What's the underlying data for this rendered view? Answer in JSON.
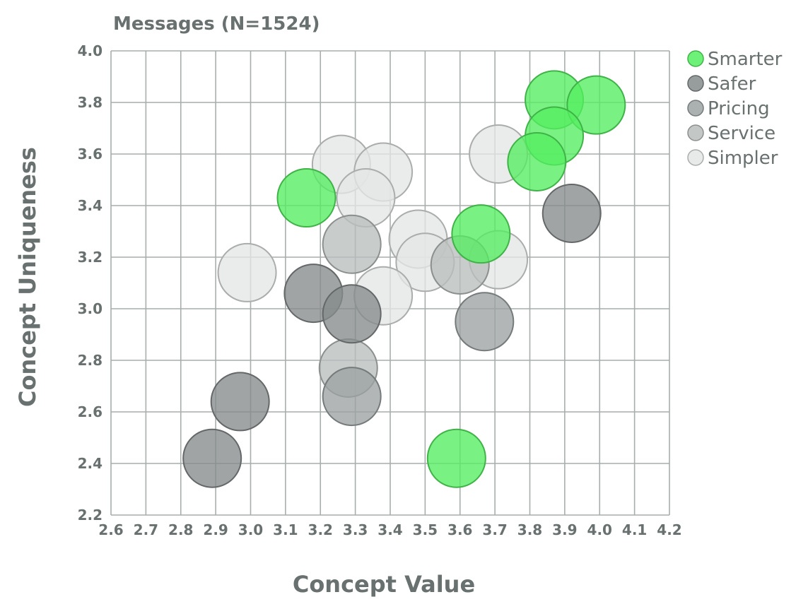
{
  "chart_data": {
    "type": "scatter",
    "title": "Messages (N=1524)",
    "xlabel": "Concept Value",
    "ylabel": "Concept Uniqueness",
    "xlim": [
      2.6,
      4.2
    ],
    "ylim": [
      2.2,
      4.0
    ],
    "x_ticks": [
      "2.6",
      "2.7",
      "2.8",
      "2.9",
      "3.0",
      "3.1",
      "3.2",
      "3.3",
      "3.4",
      "3.5",
      "3.6",
      "3.7",
      "3.8",
      "3.9",
      "4.0",
      "4.1",
      "4.2"
    ],
    "y_ticks": [
      "2.2",
      "2.4",
      "2.6",
      "2.8",
      "3.0",
      "3.2",
      "3.4",
      "3.6",
      "3.8",
      "4.0"
    ],
    "grid": true,
    "legend_position": "right",
    "series": [
      {
        "name": "Simpler",
        "color": "#e4e6e6",
        "points": [
          {
            "x": 3.26,
            "y": 3.56
          },
          {
            "x": 3.38,
            "y": 3.53
          },
          {
            "x": 3.33,
            "y": 3.43
          },
          {
            "x": 3.71,
            "y": 3.6
          },
          {
            "x": 2.99,
            "y": 3.14
          },
          {
            "x": 3.48,
            "y": 3.27
          },
          {
            "x": 3.5,
            "y": 3.18
          },
          {
            "x": 3.71,
            "y": 3.19
          },
          {
            "x": 3.38,
            "y": 3.05
          }
        ]
      },
      {
        "name": "Service",
        "color": "#b9bebd",
        "points": [
          {
            "x": 3.29,
            "y": 3.25
          },
          {
            "x": 3.28,
            "y": 2.77
          },
          {
            "x": 3.6,
            "y": 3.17
          }
        ]
      },
      {
        "name": "Pricing",
        "color": "#9ca2a2",
        "points": [
          {
            "x": 3.67,
            "y": 2.95
          },
          {
            "x": 3.29,
            "y": 2.66
          }
        ]
      },
      {
        "name": "Safer",
        "color": "#858b8b",
        "points": [
          {
            "x": 3.18,
            "y": 3.06
          },
          {
            "x": 3.29,
            "y": 2.98
          },
          {
            "x": 2.97,
            "y": 2.64
          },
          {
            "x": 2.89,
            "y": 2.42
          },
          {
            "x": 3.92,
            "y": 3.37
          }
        ]
      },
      {
        "name": "Smarter",
        "color": "#55ee60",
        "points": [
          {
            "x": 3.87,
            "y": 3.81
          },
          {
            "x": 3.99,
            "y": 3.79
          },
          {
            "x": 3.87,
            "y": 3.67
          },
          {
            "x": 3.82,
            "y": 3.57
          },
          {
            "x": 3.16,
            "y": 3.43
          },
          {
            "x": 3.66,
            "y": 3.29
          },
          {
            "x": 3.59,
            "y": 2.42
          }
        ]
      }
    ],
    "legend": [
      "Smarter",
      "Safer",
      "Pricing",
      "Service",
      "Simpler"
    ]
  }
}
